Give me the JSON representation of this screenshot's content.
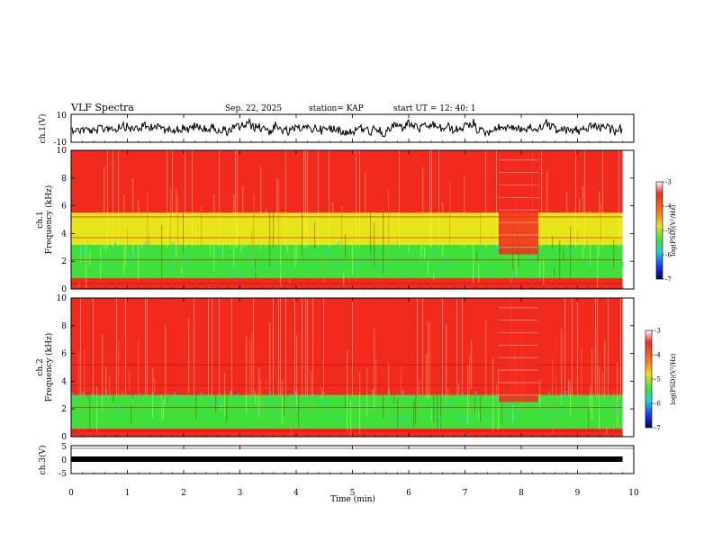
{
  "header": {
    "title": "VLF Spectra",
    "date": "Sep. 22, 2025",
    "station": "station= KAP",
    "start": "start  UT =   12: 40: 1"
  },
  "chart_data": [
    {
      "type": "line",
      "name": "ch.1 waveform",
      "ylabel": "ch.1(V)",
      "ylim": [
        -10,
        10
      ],
      "yticks": [
        "10",
        "-10"
      ],
      "xlim": [
        0,
        10
      ]
    },
    {
      "type": "heatmap",
      "name": "ch.1 spectrogram",
      "ylabel_top": "ch.1",
      "ylabel": "Frequency  (kHz)",
      "ylim": [
        0,
        10
      ],
      "yticks": [
        "0",
        "2",
        "4",
        "6",
        "8",
        "10"
      ],
      "colorbar": {
        "label": "log(PSD)(V²/Hz)",
        "range": [
          -7,
          -3
        ],
        "ticks": [
          "-3",
          "-4",
          "-5",
          "-6",
          "-7"
        ]
      },
      "bands": [
        {
          "from_khz": 0,
          "to_khz": 0.8,
          "level": "red"
        },
        {
          "from_khz": 0.8,
          "to_khz": 3.2,
          "level": "green/yellow"
        },
        {
          "from_khz": 3.2,
          "to_khz": 5.5,
          "level": "yellow/red"
        },
        {
          "from_khz": 5.5,
          "to_khz": 10,
          "level": "red"
        }
      ]
    },
    {
      "type": "heatmap",
      "name": "ch.2 spectrogram",
      "ylabel_top": "ch.2",
      "ylabel": "Frequency  (kHz)",
      "ylim": [
        0,
        10
      ],
      "yticks": [
        "0",
        "2",
        "4",
        "6",
        "8",
        "10"
      ],
      "colorbar": {
        "label": "log(PSD)(V²/Hz)",
        "range": [
          -7,
          -3
        ],
        "ticks": [
          "-3",
          "-4",
          "-5",
          "-6",
          "-7"
        ]
      },
      "bands": [
        {
          "from_khz": 0,
          "to_khz": 0.6,
          "level": "red"
        },
        {
          "from_khz": 0.6,
          "to_khz": 3.0,
          "level": "green/yellow"
        },
        {
          "from_khz": 3.0,
          "to_khz": 10,
          "level": "red"
        }
      ]
    },
    {
      "type": "line",
      "name": "ch.3 waveform",
      "ylabel": "ch.3(V)",
      "ylim": [
        -5,
        5
      ],
      "yticks": [
        "5",
        "0",
        "-5"
      ],
      "xlim": [
        0,
        10
      ]
    }
  ],
  "xaxis": {
    "label": "Time  (min)",
    "ticks": [
      "0",
      "1",
      "2",
      "3",
      "4",
      "5",
      "6",
      "7",
      "8",
      "9",
      "10"
    ],
    "range": [
      0,
      10
    ]
  },
  "data_end_min": 9.8,
  "colors": {
    "red": "#f22a1e",
    "orange": "#ff8a1a",
    "yellow": "#e8e41a",
    "green": "#3fe03a",
    "cyan": "#19d7d7",
    "blue": "#1a2cff",
    "navy": "#000080"
  }
}
